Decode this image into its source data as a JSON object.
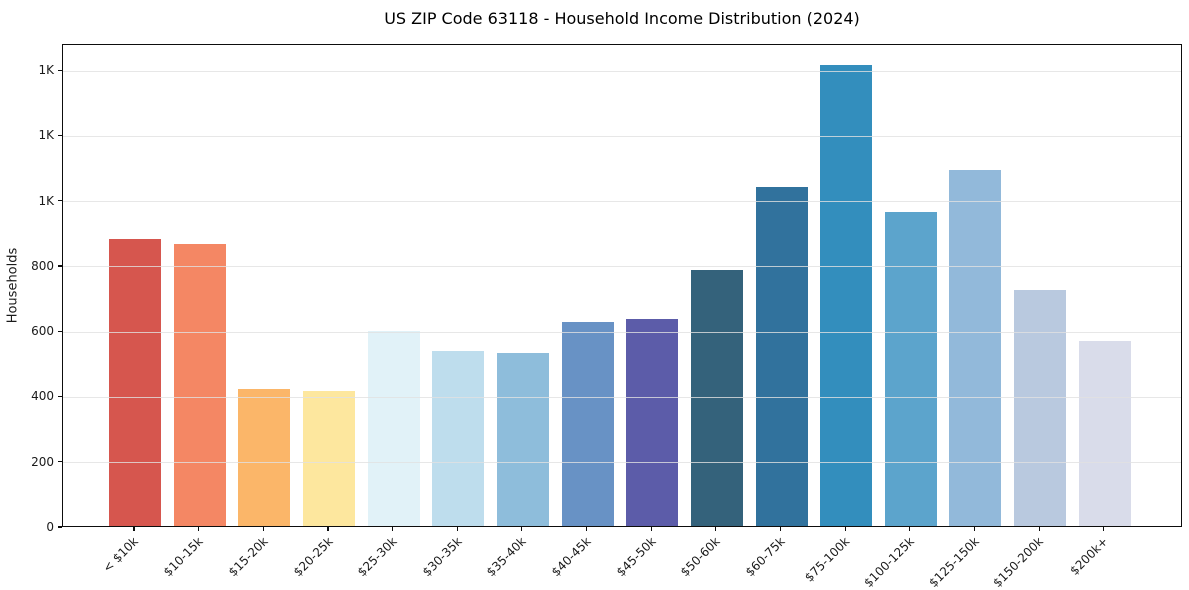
{
  "title": "US ZIP Code 63118 - Household Income Distribution (2024)",
  "chart_data": {
    "type": "bar",
    "title": "US ZIP Code 63118 - Household Income Distribution (2024)",
    "xlabel": "",
    "ylabel": "Households",
    "categories": [
      "< $10k",
      "$10-15k",
      "$15-20k",
      "$20-25k",
      "$25-30k",
      "$30-35k",
      "$35-40k",
      "$40-45k",
      "$45-50k",
      "$50-60k",
      "$60-75k",
      "$75-100k",
      "$100-125k",
      "$125-150k",
      "$150-200k",
      "$200k+"
    ],
    "values": [
      880,
      865,
      420,
      413,
      598,
      537,
      529,
      625,
      633,
      785,
      1040,
      1412,
      963,
      1092,
      724,
      566
    ],
    "bar_colors": [
      "#d6564e",
      "#f48764",
      "#fbb669",
      "#fde79e",
      "#e1f2f8",
      "#bedded",
      "#8ebddb",
      "#6892c5",
      "#5c5ca9",
      "#34627b",
      "#31729d",
      "#338ebd",
      "#5ca4cc",
      "#92b9da",
      "#b9c9df",
      "#d9dcea"
    ],
    "ylim": [
      0,
      1480
    ],
    "ytick_values": [
      0,
      200,
      400,
      600,
      800,
      1000,
      1200,
      1400
    ],
    "ytick_labels": [
      "0",
      "200",
      "400",
      "600",
      "800",
      "1K",
      "1K",
      "1K"
    ],
    "grid": "horizontal",
    "legend": "none"
  }
}
